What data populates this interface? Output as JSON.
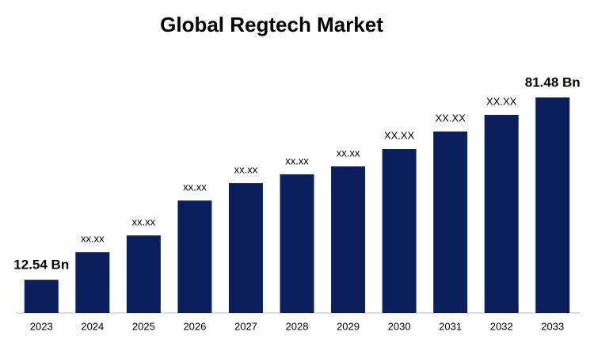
{
  "chart_data": {
    "type": "bar",
    "title": "Global Regtech Market",
    "categories": [
      "2023",
      "2024",
      "2025",
      "2026",
      "2027",
      "2028",
      "2029",
      "2030",
      "2031",
      "2032",
      "2033"
    ],
    "values": [
      12.54,
      23.0,
      29.3,
      42.5,
      49.1,
      52.4,
      55.4,
      62.0,
      68.6,
      74.9,
      81.48
    ],
    "value_labels": [
      "12.54 Bn",
      "xx.xx",
      "xx.xx",
      "xx.xx",
      "xx.xx",
      "xx.xx",
      "xx.xx",
      "XX.XX",
      "XX.XX",
      "XX.XX",
      "81.48 Bn"
    ],
    "color": "#0b1f5c"
  }
}
